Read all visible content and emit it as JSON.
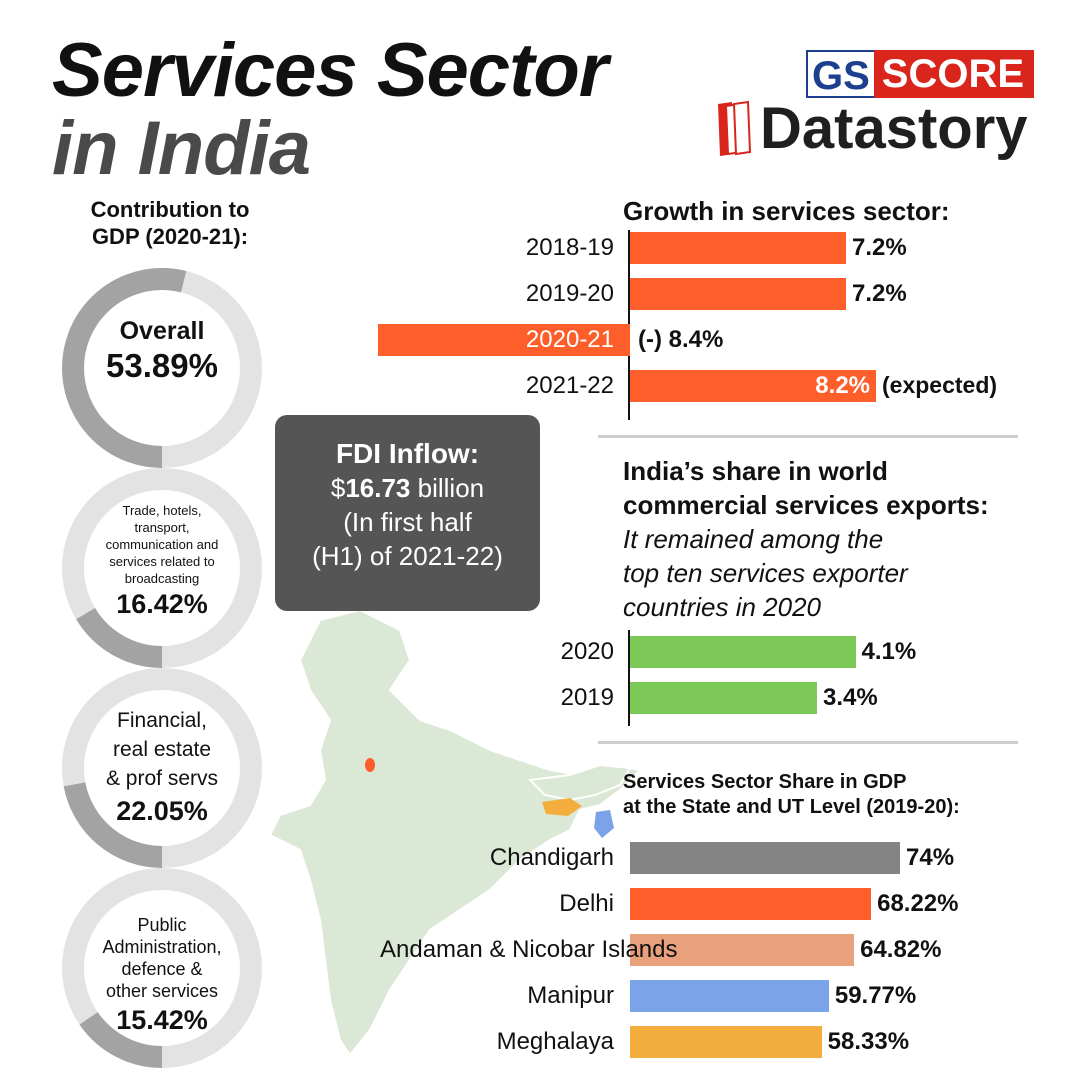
{
  "header": {
    "title_line1": "Services Sector",
    "title_line2": "in India",
    "logo_gs": "GS",
    "logo_score": "SCORE",
    "logo_datastory": "Datastory"
  },
  "contribution": {
    "title_line1": "Contribution to",
    "title_line2": "GDP (2020-21):",
    "items": [
      {
        "label_lines": [
          "Overall"
        ],
        "value": "53.89%",
        "pct": 53.89
      },
      {
        "label_lines": [
          "Trade, hotels,",
          "transport,",
          "communication and",
          "services related to",
          "broadcasting"
        ],
        "value": "16.42%",
        "pct": 16.42
      },
      {
        "label_lines": [
          "Financial,",
          "real estate",
          "& prof servs"
        ],
        "value": "22.05%",
        "pct": 22.05
      },
      {
        "label_lines": [
          "Public",
          "Administration,",
          "defence &",
          "other services"
        ],
        "value": "15.42%",
        "pct": 15.42
      }
    ]
  },
  "fdi": {
    "title": "FDI Inflow:",
    "amount_prefix": "$",
    "amount": "16.73",
    "amount_suffix": " billion",
    "line3": "(In first half",
    "line4": "(H1) of 2021-22)"
  },
  "colors": {
    "orange": "#fd5e2a",
    "green": "#7cc957",
    "gray": "#848484",
    "salmon": "#e9a07c",
    "blue": "#7ba3e8",
    "yellow": "#f2ad3d",
    "donut_track": "#e3e3e3",
    "donut_fill": "#a3a3a3",
    "map_fill": "#dce8d6"
  },
  "chart_data": [
    {
      "type": "bar",
      "title": "Growth in services sector:",
      "categories": [
        "2018-19",
        "2019-20",
        "2020-21",
        "2021-22"
      ],
      "values": [
        7.2,
        7.2,
        -8.4,
        8.2
      ],
      "value_labels": [
        "7.2%",
        "7.2%",
        "(-) 8.4%",
        "8.2%"
      ],
      "note": "(expected)",
      "unit": "%"
    },
    {
      "type": "bar",
      "title_line1": "India’s share in world",
      "title_line2": "commercial services exports:",
      "subtitle_lines": [
        "It remained among the",
        "top ten services exporter",
        "countries in 2020"
      ],
      "categories": [
        "2020",
        "2019"
      ],
      "values": [
        4.1,
        3.4
      ],
      "value_labels": [
        "4.1%",
        "3.4%"
      ],
      "unit": "%"
    },
    {
      "type": "bar",
      "title_line1": "Services Sector Share in GDP",
      "title_line2": "at the State and UT Level (2019-20):",
      "categories": [
        "Chandigarh",
        "Delhi",
        "Andaman & Nicobar Islands",
        "Manipur",
        "Meghalaya"
      ],
      "values": [
        74,
        68.22,
        64.82,
        59.77,
        58.33
      ],
      "value_labels": [
        "74%",
        "68.22%",
        "64.82%",
        "59.77%",
        "58.33%"
      ],
      "unit": "%"
    }
  ]
}
